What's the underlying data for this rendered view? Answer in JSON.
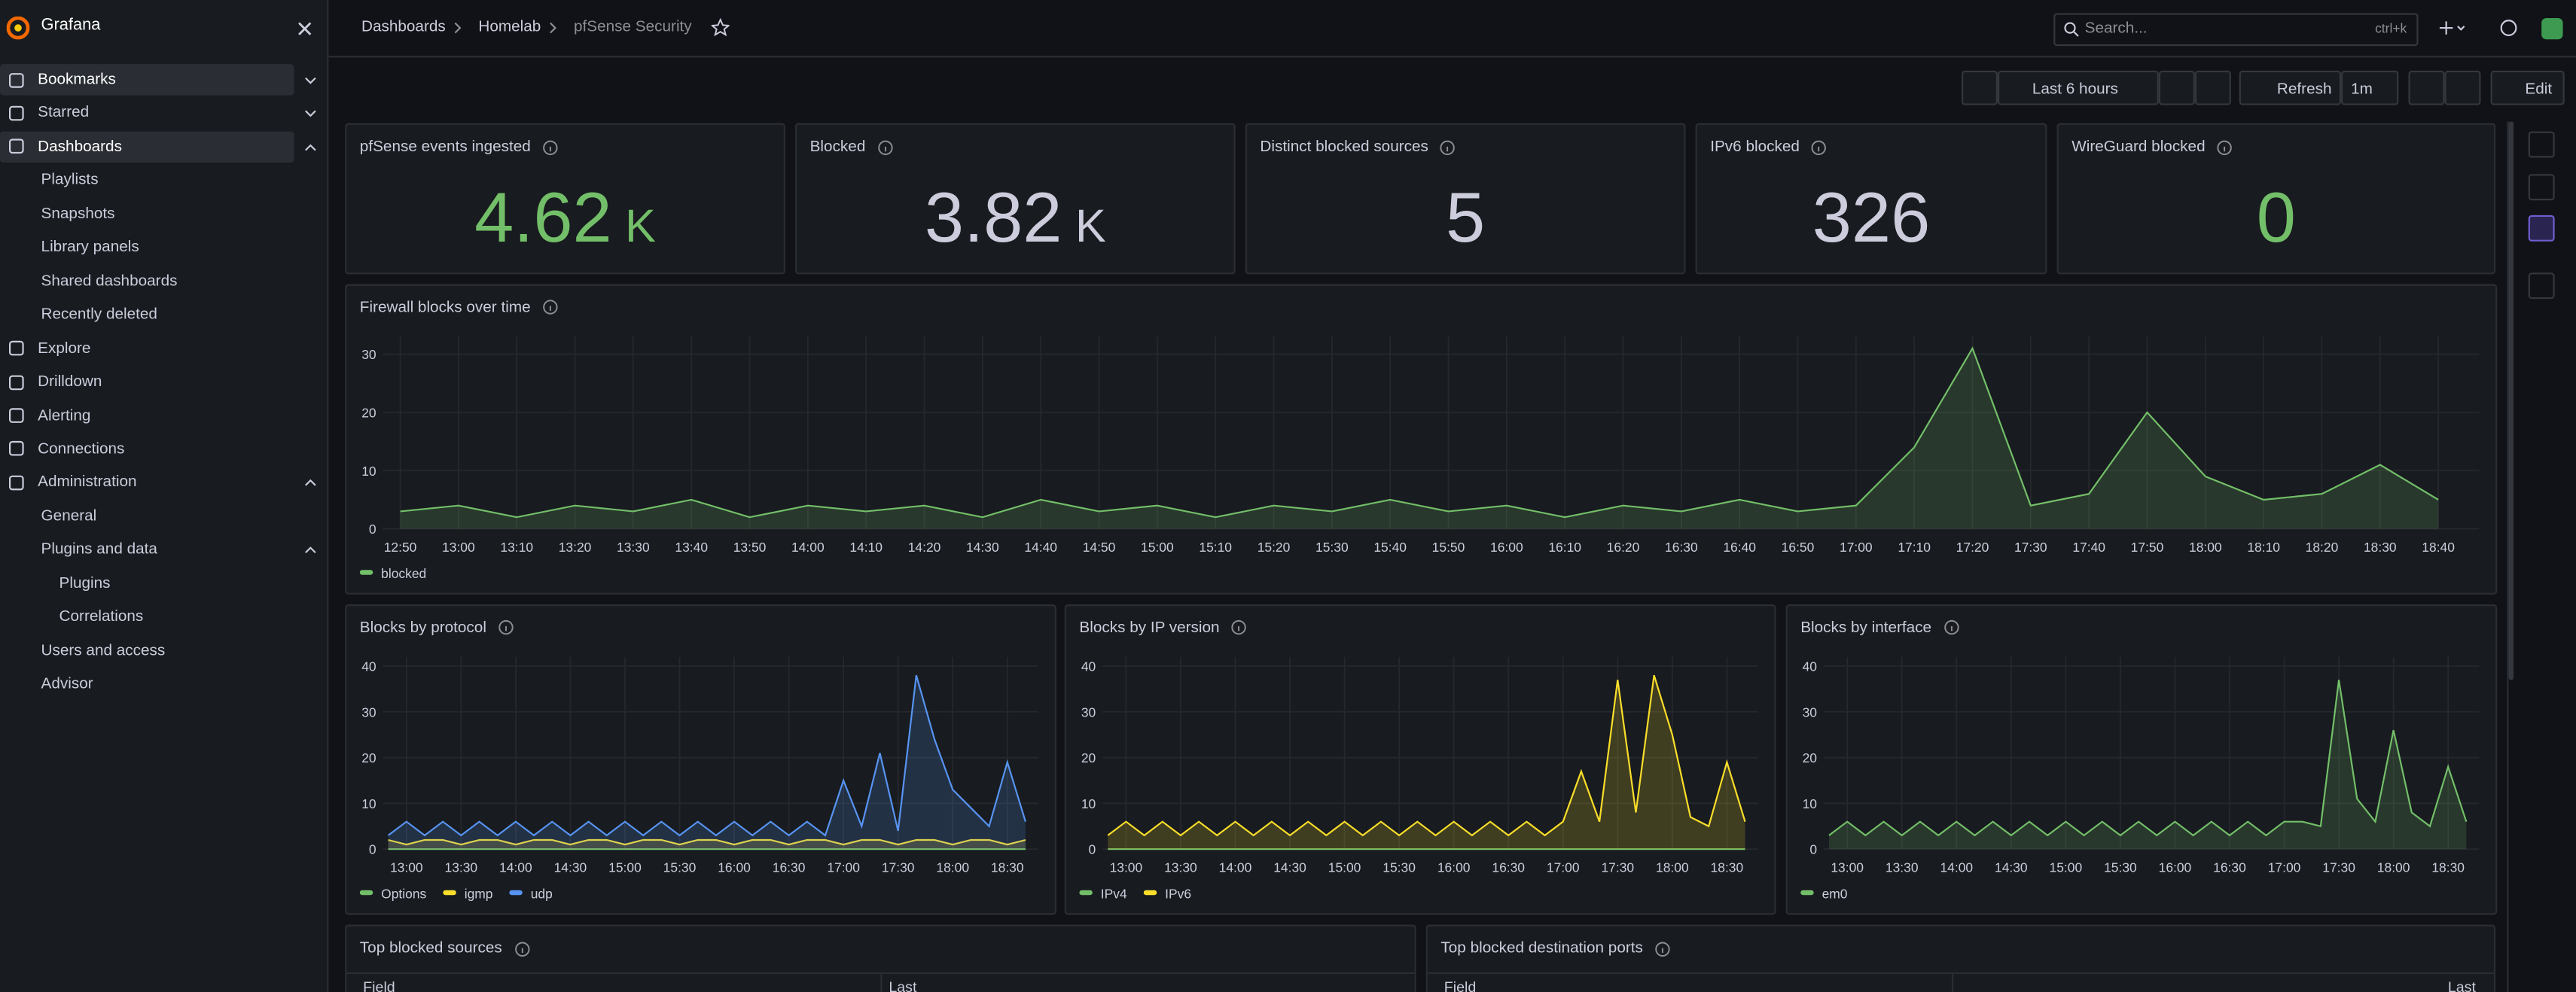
{
  "sidebar": {
    "brand": "Grafana",
    "nav": [
      {
        "label": "Bookmarks",
        "selected": true
      },
      {
        "label": "Starred"
      },
      {
        "label": "Dashboards",
        "selected": true,
        "children": [
          {
            "label": "Playlists"
          },
          {
            "label": "Snapshots"
          },
          {
            "label": "Library panels"
          },
          {
            "label": "Shared dashboards"
          },
          {
            "label": "Recently deleted"
          }
        ]
      },
      {
        "label": "Explore"
      },
      {
        "label": "Drilldown"
      },
      {
        "label": "Alerting"
      },
      {
        "label": "Connections"
      },
      {
        "label": "Administration",
        "children": [
          {
            "label": "General"
          },
          {
            "label": "Plugins and data",
            "children": [
              {
                "label": "Plugins"
              },
              {
                "label": "Correlations"
              }
            ]
          },
          {
            "label": "Users and access"
          },
          {
            "label": "Advisor"
          }
        ]
      }
    ]
  },
  "breadcrumbs": [
    "Dashboards",
    "Homelab",
    "pfSense Security"
  ],
  "search": {
    "placeholder": "Search...",
    "shortcut": "ctrl+k"
  },
  "toolbar": {
    "time_range": "Last 6 hours",
    "refresh": "Refresh",
    "interval": "1m",
    "edit": "Edit"
  },
  "stats": [
    {
      "title": "pfSense events ingested",
      "value": 4.62,
      "unit": "K",
      "color": "#73bf69"
    },
    {
      "title": "Blocked",
      "value": 3.82,
      "unit": "K",
      "color": "#ccccdc"
    },
    {
      "title": "Distinct blocked sources",
      "value": 5,
      "color": "#ccccdc"
    },
    {
      "title": "IPv6 blocked",
      "value": 326,
      "color": "#ccccdc"
    },
    {
      "title": "WireGuard blocked",
      "value": 0,
      "color": "#73bf69"
    }
  ],
  "charts": [
    {
      "type": "line",
      "title": "Firewall blocks over time",
      "x": [
        "12:50",
        "13:00",
        "13:10",
        "13:20",
        "13:30",
        "13:40",
        "13:50",
        "14:00",
        "14:10",
        "14:20",
        "14:30",
        "14:40",
        "14:50",
        "15:00",
        "15:10",
        "15:20",
        "15:30",
        "15:40",
        "15:50",
        "16:00",
        "16:10",
        "16:20",
        "16:30",
        "16:40",
        "16:50",
        "17:00",
        "17:10",
        "17:20",
        "17:30",
        "17:40",
        "17:50",
        "18:00",
        "18:10",
        "18:20",
        "18:30",
        "18:40"
      ],
      "xlim": [
        "12:47",
        "18:47"
      ],
      "ylim": [
        0,
        33
      ],
      "yticks": [
        0,
        10,
        20,
        30
      ],
      "xticks": [
        "12:50",
        "13:00",
        "13:10",
        "13:20",
        "13:30",
        "13:40",
        "13:50",
        "14:00",
        "14:10",
        "14:20",
        "14:30",
        "14:40",
        "14:50",
        "15:00",
        "15:10",
        "15:20",
        "15:30",
        "15:40",
        "15:50",
        "16:00",
        "16:10",
        "16:20",
        "16:30",
        "16:40",
        "16:50",
        "17:00",
        "17:10",
        "17:20",
        "17:30",
        "17:40",
        "17:50",
        "18:00",
        "18:10",
        "18:20",
        "18:30",
        "18:40"
      ],
      "series": [
        {
          "name": "blocked",
          "color": "#73bf69",
          "values": [
            3,
            4,
            2,
            4,
            3,
            5,
            2,
            4,
            3,
            4,
            2,
            5,
            3,
            4,
            2,
            4,
            3,
            5,
            3,
            4,
            2,
            4,
            3,
            5,
            3,
            4,
            14,
            31,
            4,
            6,
            20,
            9,
            5,
            6,
            11,
            5
          ]
        }
      ]
    },
    {
      "type": "line",
      "title": "Blocks by protocol",
      "x": [
        "12:50",
        "13:00",
        "13:10",
        "13:20",
        "13:30",
        "13:40",
        "13:50",
        "14:00",
        "14:10",
        "14:20",
        "14:30",
        "14:40",
        "14:50",
        "15:00",
        "15:10",
        "15:20",
        "15:30",
        "15:40",
        "15:50",
        "16:00",
        "16:10",
        "16:20",
        "16:30",
        "16:40",
        "16:50",
        "17:00",
        "17:10",
        "17:20",
        "17:30",
        "17:40",
        "17:50",
        "18:00",
        "18:10",
        "18:20",
        "18:30",
        "18:40"
      ],
      "xlim": [
        "12:47",
        "18:47"
      ],
      "ylim": [
        0,
        42
      ],
      "yticks": [
        0,
        10,
        20,
        30,
        40
      ],
      "xticks": [
        "13:00",
        "13:30",
        "14:00",
        "14:30",
        "15:00",
        "15:30",
        "16:00",
        "16:30",
        "17:00",
        "17:30",
        "18:00",
        "18:30"
      ],
      "series": [
        {
          "name": "Options",
          "color": "#73bf69",
          "values": [
            0,
            0,
            0,
            0,
            0,
            0,
            0,
            0,
            0,
            0,
            0,
            0,
            0,
            0,
            0,
            0,
            0,
            0,
            0,
            0,
            0,
            0,
            0,
            0,
            0,
            0,
            0,
            0,
            0,
            0,
            0,
            0,
            0,
            0,
            0,
            0
          ]
        },
        {
          "name": "igmp",
          "color": "#fade2a",
          "values": [
            2,
            1,
            2,
            2,
            1,
            2,
            2,
            1,
            2,
            2,
            1,
            2,
            2,
            1,
            2,
            2,
            1,
            2,
            2,
            1,
            2,
            2,
            1,
            2,
            2,
            1,
            2,
            2,
            1,
            2,
            2,
            1,
            2,
            2,
            1,
            2
          ]
        },
        {
          "name": "udp",
          "color": "#5794f2",
          "values": [
            3,
            6,
            3,
            6,
            3,
            6,
            3,
            6,
            3,
            6,
            3,
            6,
            3,
            6,
            3,
            6,
            3,
            6,
            3,
            6,
            3,
            6,
            3,
            6,
            3,
            15,
            5,
            21,
            4,
            38,
            24,
            13,
            9,
            5,
            19,
            6
          ]
        }
      ]
    },
    {
      "type": "line",
      "title": "Blocks by IP version",
      "x": [
        "12:50",
        "13:00",
        "13:10",
        "13:20",
        "13:30",
        "13:40",
        "13:50",
        "14:00",
        "14:10",
        "14:20",
        "14:30",
        "14:40",
        "14:50",
        "15:00",
        "15:10",
        "15:20",
        "15:30",
        "15:40",
        "15:50",
        "16:00",
        "16:10",
        "16:20",
        "16:30",
        "16:40",
        "16:50",
        "17:00",
        "17:10",
        "17:20",
        "17:30",
        "17:40",
        "17:50",
        "18:00",
        "18:10",
        "18:20",
        "18:30",
        "18:40"
      ],
      "xlim": [
        "12:47",
        "18:47"
      ],
      "ylim": [
        0,
        42
      ],
      "yticks": [
        0,
        10,
        20,
        30,
        40
      ],
      "xticks": [
        "13:00",
        "13:30",
        "14:00",
        "14:30",
        "15:00",
        "15:30",
        "16:00",
        "16:30",
        "17:00",
        "17:30",
        "18:00",
        "18:30"
      ],
      "series": [
        {
          "name": "IPv4",
          "color": "#73bf69",
          "values": [
            0,
            0,
            0,
            0,
            0,
            0,
            0,
            0,
            0,
            0,
            0,
            0,
            0,
            0,
            0,
            0,
            0,
            0,
            0,
            0,
            0,
            0,
            0,
            0,
            0,
            0,
            0,
            0,
            0,
            0,
            0,
            0,
            0,
            0,
            0,
            0
          ]
        },
        {
          "name": "IPv6",
          "color": "#fade2a",
          "values": [
            3,
            6,
            3,
            6,
            3,
            6,
            3,
            6,
            3,
            6,
            3,
            6,
            3,
            6,
            3,
            6,
            3,
            6,
            3,
            6,
            3,
            6,
            3,
            6,
            3,
            6,
            17,
            6,
            37,
            8,
            38,
            25,
            7,
            5,
            19,
            6
          ]
        }
      ]
    },
    {
      "type": "line",
      "title": "Blocks by interface",
      "x": [
        "12:50",
        "13:00",
        "13:10",
        "13:20",
        "13:30",
        "13:40",
        "13:50",
        "14:00",
        "14:10",
        "14:20",
        "14:30",
        "14:40",
        "14:50",
        "15:00",
        "15:10",
        "15:20",
        "15:30",
        "15:40",
        "15:50",
        "16:00",
        "16:10",
        "16:20",
        "16:30",
        "16:40",
        "16:50",
        "17:00",
        "17:10",
        "17:20",
        "17:30",
        "17:40",
        "17:50",
        "18:00",
        "18:10",
        "18:20",
        "18:30",
        "18:40"
      ],
      "xlim": [
        "12:47",
        "18:47"
      ],
      "ylim": [
        0,
        42
      ],
      "yticks": [
        0,
        10,
        20,
        30,
        40
      ],
      "xticks": [
        "13:00",
        "13:30",
        "14:00",
        "14:30",
        "15:00",
        "15:30",
        "16:00",
        "16:30",
        "17:00",
        "17:30",
        "18:00",
        "18:30"
      ],
      "series": [
        {
          "name": "em0",
          "color": "#73bf69",
          "values": [
            3,
            6,
            3,
            6,
            3,
            6,
            3,
            6,
            3,
            6,
            3,
            6,
            3,
            6,
            3,
            6,
            3,
            6,
            3,
            6,
            3,
            6,
            3,
            6,
            3,
            6,
            6,
            5,
            37,
            11,
            6,
            26,
            8,
            5,
            18,
            6
          ]
        }
      ]
    }
  ],
  "tables": [
    {
      "title": "Top blocked sources",
      "columns": [
        "Field",
        "Last"
      ]
    },
    {
      "title": "Top blocked destination ports",
      "columns": [
        "Field",
        "Last"
      ]
    }
  ]
}
